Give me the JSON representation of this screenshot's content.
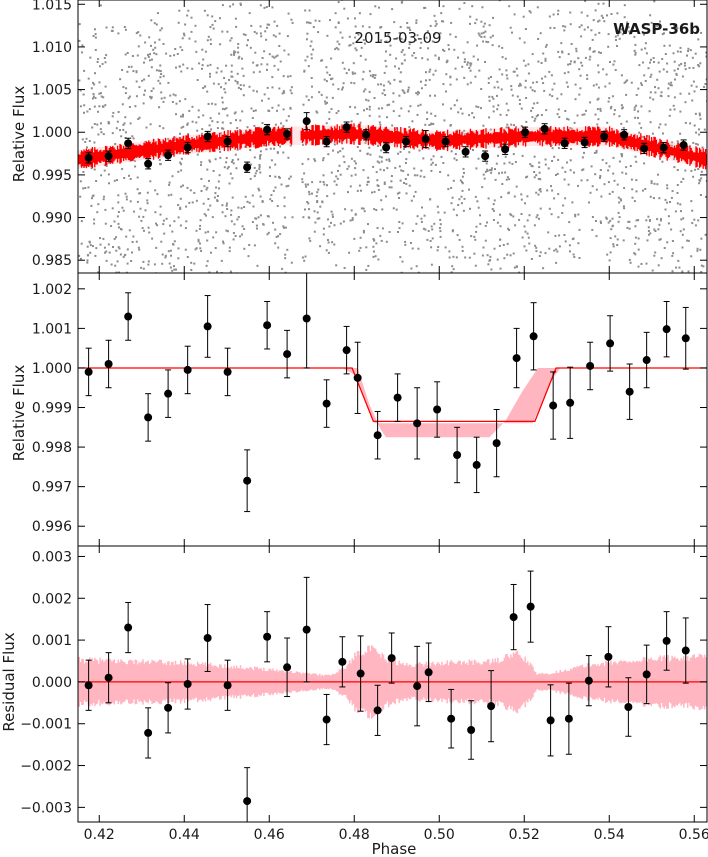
{
  "figure": {
    "target": "WASP-36b",
    "date": "2015-03-09",
    "xlabel": "Phase",
    "colors": {
      "raw": "#8c8c8c",
      "model": "#ff0000",
      "band": "#ffb6c1",
      "binned": "#000000"
    }
  },
  "chart_data": [
    {
      "type": "scatter",
      "panel": "top",
      "ylabel": "Relative Flux",
      "xlim": [
        0.415,
        0.563
      ],
      "ylim": [
        0.9835,
        1.0155
      ],
      "xticks": [
        "0.42",
        "0.44",
        "0.46",
        "0.48",
        "0.50",
        "0.52",
        "0.54",
        "0.56"
      ],
      "yticks": [
        "0.985",
        "0.990",
        "0.995",
        "1.000",
        "1.005",
        "1.010",
        "1.015"
      ],
      "raw_points": {
        "description": "unbinned gray photometry, scattered between ~0.984 and ~1.014",
        "gap_phase": [
          0.4655,
          0.4675
        ]
      },
      "model_band": {
        "center": [
          [
            0.415,
            0.9968
          ],
          [
            0.44,
            0.9985
          ],
          [
            0.46,
            0.9995
          ],
          [
            0.48,
            0.9998
          ],
          [
            0.5,
            0.999
          ],
          [
            0.52,
            0.9995
          ],
          [
            0.54,
            0.9995
          ],
          [
            0.563,
            0.9968
          ]
        ],
        "halfwidth": 0.0009
      },
      "series": [
        {
          "x": [
            0.4175,
            0.4222,
            0.4268,
            0.4315,
            0.4362,
            0.4408,
            0.4455,
            0.4502,
            0.4548,
            0.4595,
            0.4642,
            0.4688,
            0.4735,
            0.4782,
            0.4828,
            0.4875,
            0.4922,
            0.4968,
            0.5015,
            0.5062,
            0.5108,
            0.5155,
            0.5202,
            0.5248,
            0.5295,
            0.5342,
            0.5388,
            0.5435,
            0.5482,
            0.5528,
            0.5575
          ],
          "y": [
            0.997,
            0.9972,
            0.9987,
            0.9963,
            0.9973,
            0.9982,
            0.9995,
            0.9989,
            0.9959,
            1.0003,
            0.9998,
            1.0013,
            0.9989,
            1.0006,
            0.9997,
            0.9982,
            0.9989,
            0.9992,
            0.9989,
            0.9977,
            0.9972,
            0.998,
            1.0,
            1.0004,
            0.9987,
            0.9988,
            0.9995,
            0.9997,
            0.9981,
            0.9982,
            0.9985
          ],
          "err": [
            0.0006,
            0.0006,
            0.0006,
            0.0006,
            0.0006,
            0.0006,
            0.0006,
            0.0006,
            0.0006,
            0.0006,
            0.0006,
            0.001,
            0.0006,
            0.0006,
            0.0006,
            0.0006,
            0.0006,
            0.001,
            0.0006,
            0.0006,
            0.0006,
            0.0006,
            0.0006,
            0.0006,
            0.0006,
            0.0006,
            0.0006,
            0.0006,
            0.0006,
            0.0006,
            0.0006
          ]
        }
      ]
    },
    {
      "type": "scatter",
      "panel": "middle",
      "ylabel": "Relative Flux",
      "xlim": [
        0.415,
        0.563
      ],
      "ylim": [
        0.9955,
        1.0024
      ],
      "yticks": [
        "0.996",
        "0.997",
        "0.998",
        "0.999",
        "1.000",
        "1.001",
        "1.002"
      ],
      "model": [
        [
          0.415,
          1.0
        ],
        [
          0.4795,
          1.0
        ],
        [
          0.4845,
          0.99865
        ],
        [
          0.5225,
          0.99865
        ],
        [
          0.5275,
          1.0
        ],
        [
          0.563,
          1.0
        ]
      ],
      "model_band": {
        "outer": [
          [
            0.415,
            1.0
          ],
          [
            0.4772,
            1.0
          ],
          [
            0.4805,
            0.9998
          ],
          [
            0.4825,
            0.9992
          ],
          [
            0.4848,
            0.9986
          ],
          [
            0.522,
            0.9986
          ],
          [
            0.524,
            0.9991
          ],
          [
            0.5265,
            0.9997
          ],
          [
            0.5285,
            1.0
          ],
          [
            0.563,
            1.0
          ]
        ],
        "inner": [
          [
            0.415,
            1.0
          ],
          [
            0.4808,
            1.0
          ],
          [
            0.4835,
            0.9991
          ],
          [
            0.4862,
            0.99845
          ],
          [
            0.4875,
            0.99825
          ],
          [
            0.5118,
            0.99825
          ],
          [
            0.5155,
            0.99865
          ],
          [
            0.5195,
            0.9994
          ],
          [
            0.5232,
            1.0
          ],
          [
            0.563,
            1.0
          ]
        ]
      },
      "series": [
        {
          "x": [
            0.4175,
            0.4222,
            0.4268,
            0.4315,
            0.4362,
            0.4408,
            0.4455,
            0.4502,
            0.4548,
            0.4595,
            0.4642,
            0.4688,
            0.4735,
            0.4782,
            0.4808,
            0.4855,
            0.4902,
            0.4948,
            0.4995,
            0.5042,
            0.5088,
            0.5135,
            0.5182,
            0.5222,
            0.5268,
            0.5308,
            0.5355,
            0.5402,
            0.5448,
            0.5488,
            0.5535,
            0.558
          ],
          "y": [
            0.9999,
            1.0001,
            1.0013,
            0.99875,
            0.99935,
            0.99995,
            1.00105,
            0.9999,
            0.99715,
            1.00108,
            1.00035,
            1.00125,
            0.9991,
            1.00045,
            0.99975,
            0.9983,
            0.99925,
            0.9986,
            0.99895,
            0.9978,
            0.99755,
            0.9981,
            1.00025,
            1.0008,
            0.99905,
            0.99912,
            1.00005,
            1.00062,
            0.9994,
            1.0002,
            1.00098,
            1.00075
          ],
          "err": [
            0.0006,
            0.0006,
            0.0006,
            0.0006,
            0.0006,
            0.0006,
            0.00078,
            0.0006,
            0.00078,
            0.0006,
            0.0006,
            0.00125,
            0.0006,
            0.0006,
            0.0009,
            0.0006,
            0.0006,
            0.0009,
            0.0007,
            0.0007,
            0.0007,
            0.00085,
            0.00075,
            0.00085,
            0.00085,
            0.0009,
            0.0006,
            0.0007,
            0.0007,
            0.0007,
            0.0007,
            0.00078
          ]
        }
      ]
    },
    {
      "type": "scatter",
      "panel": "bottom",
      "ylabel": "Residual Flux",
      "xlim": [
        0.415,
        0.563
      ],
      "ylim": [
        -0.00335,
        0.00325
      ],
      "yticks": [
        "−0.003",
        "−0.002",
        "−0.001",
        "0.000",
        "0.001",
        "0.002",
        "0.003"
      ],
      "model": [
        [
          0.415,
          0.0
        ],
        [
          0.563,
          0.0
        ]
      ],
      "residual_band": [
        [
          0.415,
          0.00052
        ],
        [
          0.44,
          0.00045
        ],
        [
          0.46,
          0.0003
        ],
        [
          0.474,
          0.00015
        ],
        [
          0.478,
          0.00035
        ],
        [
          0.481,
          0.00072
        ],
        [
          0.484,
          0.00078
        ],
        [
          0.4875,
          0.00055
        ],
        [
          0.492,
          0.0004
        ],
        [
          0.5,
          0.00045
        ],
        [
          0.513,
          0.00048
        ],
        [
          0.518,
          0.00068
        ],
        [
          0.521,
          0.00048
        ],
        [
          0.523,
          0.00018
        ],
        [
          0.527,
          0.00022
        ],
        [
          0.535,
          0.0004
        ],
        [
          0.55,
          0.00055
        ],
        [
          0.563,
          0.0006
        ]
      ],
      "series": [
        {
          "x": [
            0.4175,
            0.4222,
            0.4268,
            0.4315,
            0.4362,
            0.4408,
            0.4455,
            0.4502,
            0.4548,
            0.4595,
            0.4642,
            0.4688,
            0.4735,
            0.4772,
            0.4815,
            0.4855,
            0.4888,
            0.4948,
            0.4975,
            0.5028,
            0.5075,
            0.5122,
            0.5175,
            0.5215,
            0.5262,
            0.5305,
            0.5352,
            0.5398,
            0.5445,
            0.5488,
            0.5535,
            0.558
          ],
          "y": [
            -8e-05,
            0.0001,
            0.0013,
            -0.00122,
            -0.00062,
            -5e-05,
            0.00105,
            -8e-05,
            -0.00285,
            0.00108,
            0.00035,
            0.00125,
            -0.0009,
            0.00048,
            0.0002,
            -0.00068,
            0.00057,
            -0.0001,
            0.00023,
            -0.00088,
            -0.00115,
            -0.00058,
            0.00155,
            0.0018,
            -0.00092,
            -0.00088,
            3e-05,
            0.0006,
            -0.0006,
            0.00018,
            0.00098,
            0.00075
          ],
          "err": [
            0.0006,
            0.0006,
            0.0006,
            0.0006,
            0.0006,
            0.0006,
            0.0008,
            0.0006,
            0.0008,
            0.0006,
            0.0007,
            0.00125,
            0.0006,
            0.0006,
            0.0009,
            0.0006,
            0.0006,
            0.00095,
            0.0007,
            0.0007,
            0.0007,
            0.00085,
            0.00078,
            0.00085,
            0.00085,
            0.00085,
            0.0006,
            0.00072,
            0.0007,
            0.0007,
            0.0007,
            0.00078
          ]
        }
      ]
    }
  ]
}
